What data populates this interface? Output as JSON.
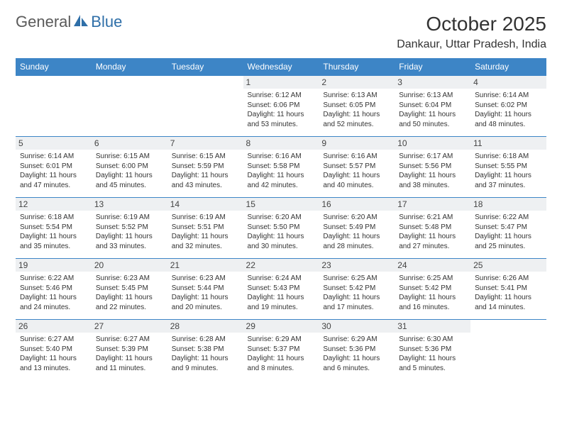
{
  "logo": {
    "text1": "General",
    "text2": "Blue"
  },
  "title": "October 2025",
  "location": "Dankaur, Uttar Pradesh, India",
  "colors": {
    "header_bg": "#3d85c6",
    "header_text": "#ffffff",
    "rule": "#3d85c6",
    "daynum_bg": "#eef0f2",
    "text": "#333333",
    "logo_gray": "#5a5a5a",
    "logo_blue": "#2f6fa8"
  },
  "weekday_headers": [
    "Sunday",
    "Monday",
    "Tuesday",
    "Wednesday",
    "Thursday",
    "Friday",
    "Saturday"
  ],
  "weeks": [
    [
      {
        "empty": true
      },
      {
        "empty": true
      },
      {
        "empty": true
      },
      {
        "day": "1",
        "sunrise": "6:12 AM",
        "sunset": "6:06 PM",
        "daylight": "11 hours and 53 minutes."
      },
      {
        "day": "2",
        "sunrise": "6:13 AM",
        "sunset": "6:05 PM",
        "daylight": "11 hours and 52 minutes."
      },
      {
        "day": "3",
        "sunrise": "6:13 AM",
        "sunset": "6:04 PM",
        "daylight": "11 hours and 50 minutes."
      },
      {
        "day": "4",
        "sunrise": "6:14 AM",
        "sunset": "6:02 PM",
        "daylight": "11 hours and 48 minutes."
      }
    ],
    [
      {
        "day": "5",
        "sunrise": "6:14 AM",
        "sunset": "6:01 PM",
        "daylight": "11 hours and 47 minutes."
      },
      {
        "day": "6",
        "sunrise": "6:15 AM",
        "sunset": "6:00 PM",
        "daylight": "11 hours and 45 minutes."
      },
      {
        "day": "7",
        "sunrise": "6:15 AM",
        "sunset": "5:59 PM",
        "daylight": "11 hours and 43 minutes."
      },
      {
        "day": "8",
        "sunrise": "6:16 AM",
        "sunset": "5:58 PM",
        "daylight": "11 hours and 42 minutes."
      },
      {
        "day": "9",
        "sunrise": "6:16 AM",
        "sunset": "5:57 PM",
        "daylight": "11 hours and 40 minutes."
      },
      {
        "day": "10",
        "sunrise": "6:17 AM",
        "sunset": "5:56 PM",
        "daylight": "11 hours and 38 minutes."
      },
      {
        "day": "11",
        "sunrise": "6:18 AM",
        "sunset": "5:55 PM",
        "daylight": "11 hours and 37 minutes."
      }
    ],
    [
      {
        "day": "12",
        "sunrise": "6:18 AM",
        "sunset": "5:54 PM",
        "daylight": "11 hours and 35 minutes."
      },
      {
        "day": "13",
        "sunrise": "6:19 AM",
        "sunset": "5:52 PM",
        "daylight": "11 hours and 33 minutes."
      },
      {
        "day": "14",
        "sunrise": "6:19 AM",
        "sunset": "5:51 PM",
        "daylight": "11 hours and 32 minutes."
      },
      {
        "day": "15",
        "sunrise": "6:20 AM",
        "sunset": "5:50 PM",
        "daylight": "11 hours and 30 minutes."
      },
      {
        "day": "16",
        "sunrise": "6:20 AM",
        "sunset": "5:49 PM",
        "daylight": "11 hours and 28 minutes."
      },
      {
        "day": "17",
        "sunrise": "6:21 AM",
        "sunset": "5:48 PM",
        "daylight": "11 hours and 27 minutes."
      },
      {
        "day": "18",
        "sunrise": "6:22 AM",
        "sunset": "5:47 PM",
        "daylight": "11 hours and 25 minutes."
      }
    ],
    [
      {
        "day": "19",
        "sunrise": "6:22 AM",
        "sunset": "5:46 PM",
        "daylight": "11 hours and 24 minutes."
      },
      {
        "day": "20",
        "sunrise": "6:23 AM",
        "sunset": "5:45 PM",
        "daylight": "11 hours and 22 minutes."
      },
      {
        "day": "21",
        "sunrise": "6:23 AM",
        "sunset": "5:44 PM",
        "daylight": "11 hours and 20 minutes."
      },
      {
        "day": "22",
        "sunrise": "6:24 AM",
        "sunset": "5:43 PM",
        "daylight": "11 hours and 19 minutes."
      },
      {
        "day": "23",
        "sunrise": "6:25 AM",
        "sunset": "5:42 PM",
        "daylight": "11 hours and 17 minutes."
      },
      {
        "day": "24",
        "sunrise": "6:25 AM",
        "sunset": "5:42 PM",
        "daylight": "11 hours and 16 minutes."
      },
      {
        "day": "25",
        "sunrise": "6:26 AM",
        "sunset": "5:41 PM",
        "daylight": "11 hours and 14 minutes."
      }
    ],
    [
      {
        "day": "26",
        "sunrise": "6:27 AM",
        "sunset": "5:40 PM",
        "daylight": "11 hours and 13 minutes."
      },
      {
        "day": "27",
        "sunrise": "6:27 AM",
        "sunset": "5:39 PM",
        "daylight": "11 hours and 11 minutes."
      },
      {
        "day": "28",
        "sunrise": "6:28 AM",
        "sunset": "5:38 PM",
        "daylight": "11 hours and 9 minutes."
      },
      {
        "day": "29",
        "sunrise": "6:29 AM",
        "sunset": "5:37 PM",
        "daylight": "11 hours and 8 minutes."
      },
      {
        "day": "30",
        "sunrise": "6:29 AM",
        "sunset": "5:36 PM",
        "daylight": "11 hours and 6 minutes."
      },
      {
        "day": "31",
        "sunrise": "6:30 AM",
        "sunset": "5:36 PM",
        "daylight": "11 hours and 5 minutes."
      },
      {
        "empty": true
      }
    ]
  ],
  "labels": {
    "sunrise": "Sunrise: ",
    "sunset": "Sunset: ",
    "daylight": "Daylight: "
  }
}
